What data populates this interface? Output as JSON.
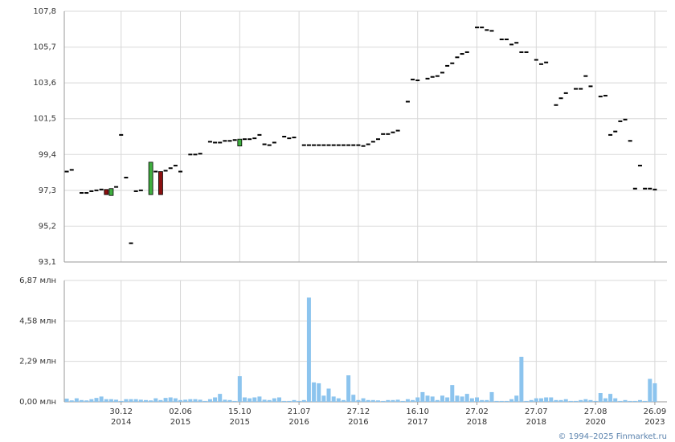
{
  "chart_data": {
    "type": "candlestick",
    "categories": [
      null,
      null,
      null,
      null,
      null,
      null,
      null,
      null,
      null,
      null,
      null,
      {
        "date": "30.12",
        "year": "2014"
      },
      null,
      null,
      null,
      null,
      null,
      null,
      null,
      null,
      null,
      null,
      null,
      {
        "date": "02.06",
        "year": "2015"
      },
      null,
      null,
      null,
      null,
      null,
      null,
      null,
      null,
      null,
      null,
      null,
      {
        "date": "15.10",
        "year": "2015"
      },
      null,
      null,
      null,
      null,
      null,
      null,
      null,
      null,
      null,
      null,
      null,
      {
        "date": "21.07",
        "year": "2016"
      },
      null,
      null,
      null,
      null,
      null,
      null,
      null,
      null,
      null,
      null,
      null,
      {
        "date": "27.12",
        "year": "2016"
      },
      null,
      null,
      null,
      null,
      null,
      null,
      null,
      null,
      null,
      null,
      null,
      {
        "date": "16.10",
        "year": "2017"
      },
      null,
      null,
      null,
      null,
      null,
      null,
      null,
      null,
      null,
      null,
      null,
      {
        "date": "27.02",
        "year": "2018"
      },
      null,
      null,
      null,
      null,
      null,
      null,
      null,
      null,
      null,
      null,
      null,
      {
        "date": "27.07",
        "year": "2018"
      },
      null,
      null,
      null,
      null,
      null,
      null,
      null,
      null,
      null,
      null,
      null,
      {
        "date": "27.08",
        "year": "2020"
      },
      null,
      null,
      null,
      null,
      null,
      null,
      null,
      null,
      null,
      null,
      null,
      {
        "date": "26.09",
        "year": "2023"
      }
    ],
    "open": [
      98.4,
      98.5,
      null,
      97.15,
      97.15,
      97.25,
      97.3,
      97.35,
      97.35,
      97.0,
      97.5,
      100.55,
      98.05,
      94.2,
      97.25,
      97.3,
      null,
      97.05,
      98.4,
      98.4,
      98.45,
      98.6,
      98.75,
      98.4,
      null,
      99.4,
      99.4,
      99.45,
      null,
      100.15,
      100.1,
      100.1,
      100.2,
      100.2,
      100.25,
      99.9,
      100.3,
      100.3,
      100.35,
      100.55,
      100.0,
      99.95,
      100.1,
      null,
      100.45,
      100.35,
      100.4,
      null,
      99.95,
      99.95,
      99.95,
      99.95,
      99.95,
      99.95,
      99.95,
      99.95,
      99.95,
      99.95,
      99.95,
      99.95,
      99.9,
      100.0,
      100.15,
      100.3,
      100.6,
      100.6,
      100.7,
      100.8,
      null,
      102.5,
      103.8,
      103.75,
      null,
      103.85,
      103.95,
      104.0,
      104.2,
      104.6,
      104.75,
      105.1,
      105.3,
      105.4,
      null,
      106.85,
      106.85,
      106.7,
      106.65,
      null,
      106.15,
      106.15,
      105.85,
      105.95,
      105.4,
      105.4,
      null,
      104.95,
      104.7,
      104.8,
      null,
      102.3,
      102.7,
      103.0,
      null,
      103.25,
      103.25,
      104.0,
      103.4,
      null,
      102.8,
      102.85,
      100.55,
      100.75,
      101.35,
      101.45,
      100.2,
      97.4,
      98.75,
      97.4,
      97.4,
      97.35
    ],
    "close": [
      98.4,
      98.5,
      null,
      97.15,
      97.15,
      97.25,
      97.3,
      97.35,
      97.05,
      97.4,
      97.5,
      100.55,
      98.05,
      94.2,
      97.25,
      97.3,
      null,
      98.95,
      98.4,
      97.05,
      98.45,
      98.6,
      98.75,
      98.4,
      null,
      99.4,
      99.4,
      99.45,
      null,
      100.15,
      100.1,
      100.1,
      100.2,
      100.2,
      100.25,
      100.3,
      100.3,
      100.3,
      100.35,
      100.55,
      100.0,
      99.95,
      100.1,
      null,
      100.45,
      100.35,
      100.4,
      null,
      99.95,
      99.95,
      99.95,
      99.95,
      99.95,
      99.95,
      99.95,
      99.95,
      99.95,
      99.95,
      99.95,
      99.95,
      99.9,
      100.0,
      100.15,
      100.3,
      100.6,
      100.6,
      100.7,
      100.8,
      null,
      102.5,
      103.8,
      103.75,
      null,
      103.85,
      103.95,
      104.0,
      104.2,
      104.6,
      104.75,
      105.1,
      105.3,
      105.4,
      null,
      106.85,
      106.85,
      106.7,
      106.65,
      null,
      106.15,
      106.15,
      105.85,
      105.95,
      105.4,
      105.4,
      null,
      104.95,
      104.7,
      104.8,
      null,
      102.3,
      102.7,
      103.0,
      null,
      103.25,
      103.25,
      104.0,
      103.4,
      null,
      102.8,
      102.85,
      100.55,
      100.75,
      101.35,
      101.45,
      100.2,
      97.4,
      98.75,
      97.4,
      97.4,
      97.35
    ],
    "up_color": "#3fae3f",
    "down_color": "#8b1010",
    "ylim": [
      93.1,
      107.8
    ],
    "yticks": [
      {
        "value": 93.1,
        "label": "93,1"
      },
      {
        "value": 95.2,
        "label": "95,2"
      },
      {
        "value": 97.3,
        "label": "97,3"
      },
      {
        "value": 99.4,
        "label": "99,4"
      },
      {
        "value": 101.5,
        "label": "101,5"
      },
      {
        "value": 103.6,
        "label": "103,6"
      },
      {
        "value": 105.7,
        "label": "105,7"
      },
      {
        "value": 107.8,
        "label": "107,8"
      }
    ],
    "volume": {
      "color": "#8cc4ee",
      "values": [
        0.18,
        0.08,
        0.2,
        0.1,
        0.08,
        0.15,
        0.22,
        0.3,
        0.15,
        0.15,
        0.12,
        0.05,
        0.15,
        0.15,
        0.15,
        0.12,
        0.1,
        0.08,
        0.2,
        0.1,
        0.22,
        0.25,
        0.2,
        0.1,
        0.12,
        0.15,
        0.15,
        0.12,
        0.05,
        0.15,
        0.25,
        0.45,
        0.12,
        0.1,
        0.05,
        1.45,
        0.25,
        0.2,
        0.25,
        0.3,
        0.12,
        0.1,
        0.2,
        0.25,
        0.05,
        0.05,
        0.1,
        0.05,
        0.1,
        5.9,
        1.1,
        1.05,
        0.35,
        0.75,
        0.3,
        0.2,
        0.1,
        1.5,
        0.4,
        0.1,
        0.2,
        0.1,
        0.1,
        0.08,
        0.05,
        0.1,
        0.1,
        0.12,
        0.05,
        0.15,
        0.1,
        0.25,
        0.55,
        0.35,
        0.3,
        0.1,
        0.35,
        0.25,
        0.95,
        0.35,
        0.3,
        0.45,
        0.2,
        0.25,
        0.1,
        0.1,
        0.55,
        0.05,
        0.05,
        0.05,
        0.15,
        0.35,
        2.55,
        0.05,
        0.1,
        0.2,
        0.2,
        0.25,
        0.25,
        0.1,
        0.1,
        0.15,
        0.05,
        0.05,
        0.1,
        0.15,
        0.1,
        0.05,
        0.5,
        0.2,
        0.45,
        0.2,
        0.05,
        0.1,
        0.05,
        0.05,
        0.1,
        0.05,
        1.3,
        1.05
      ],
      "ylim": [
        0,
        6.87
      ],
      "yticks": [
        {
          "value": 0,
          "label": "0,00 млн"
        },
        {
          "value": 2.29,
          "label": "2,29 млн"
        },
        {
          "value": 4.58,
          "label": "4,58 млн"
        },
        {
          "value": 6.87,
          "label": "6,87 млн"
        }
      ]
    },
    "grid": true,
    "footer": "© 1994–2025 Finmarket.ru"
  }
}
